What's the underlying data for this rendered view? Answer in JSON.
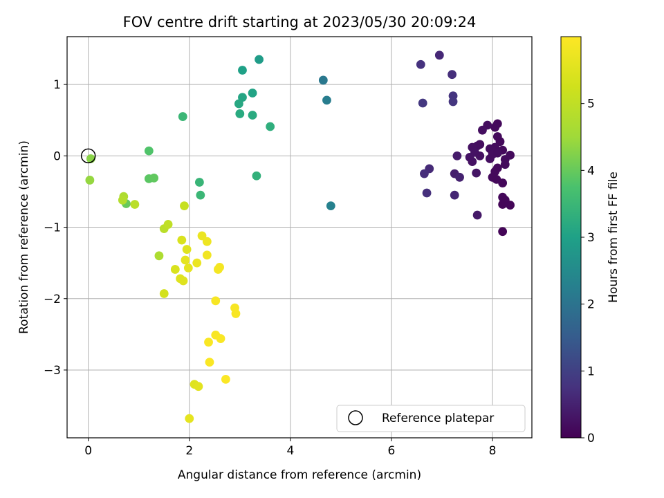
{
  "chart_data": {
    "type": "scatter",
    "title": "FOV centre drift starting at 2023/05/30 20:09:24",
    "xlabel": "Angular distance from reference (arcmin)",
    "ylabel": "Rotation from reference (arcmin)",
    "xlim": [
      -0.42,
      8.78
    ],
    "ylim": [
      -3.95,
      1.67
    ],
    "xticks": [
      0,
      2,
      4,
      6,
      8
    ],
    "yticks": [
      1,
      0,
      -1,
      -2,
      -3
    ],
    "grid": true,
    "colorbar": {
      "label": "Hours from first FF file",
      "min": 0,
      "max": 6.0,
      "ticks": [
        0,
        1,
        2,
        3,
        4,
        5
      ],
      "colormap": "viridis"
    },
    "reference_point": {
      "x": 0,
      "y": 0,
      "label": "Reference platepar"
    },
    "legend": {
      "position": "lower-right",
      "entries": [
        "Reference platepar"
      ]
    },
    "points": [
      {
        "x": 8.1,
        "y": 0.45,
        "h": 0.12
      },
      {
        "x": 8.05,
        "y": 0.4,
        "h": 0.14
      },
      {
        "x": 7.9,
        "y": 0.43,
        "h": 0.18
      },
      {
        "x": 7.8,
        "y": 0.36,
        "h": 0.22
      },
      {
        "x": 8.1,
        "y": 0.27,
        "h": 0.15
      },
      {
        "x": 8.15,
        "y": 0.2,
        "h": 0.13
      },
      {
        "x": 8.2,
        "y": 0.08,
        "h": 0.12
      },
      {
        "x": 8.05,
        "y": 0.12,
        "h": 0.16
      },
      {
        "x": 7.95,
        "y": 0.1,
        "h": 0.18
      },
      {
        "x": 7.75,
        "y": 0.16,
        "h": 0.2
      },
      {
        "x": 7.7,
        "y": 0.14,
        "h": 0.22
      },
      {
        "x": 7.6,
        "y": 0.12,
        "h": 0.24
      },
      {
        "x": 7.65,
        "y": 0.05,
        "h": 0.26
      },
      {
        "x": 7.55,
        "y": -0.02,
        "h": 0.28
      },
      {
        "x": 7.6,
        "y": -0.08,
        "h": 0.26
      },
      {
        "x": 7.75,
        "y": 0.0,
        "h": 0.24
      },
      {
        "x": 7.95,
        "y": -0.04,
        "h": 0.22
      },
      {
        "x": 8.0,
        "y": 0.02,
        "h": 0.2
      },
      {
        "x": 8.1,
        "y": 0.04,
        "h": 0.18
      },
      {
        "x": 8.25,
        "y": -0.05,
        "h": 0.16
      },
      {
        "x": 8.35,
        "y": 0.01,
        "h": 0.15
      },
      {
        "x": 8.25,
        "y": -0.12,
        "h": 0.14
      },
      {
        "x": 8.1,
        "y": -0.17,
        "h": 0.13
      },
      {
        "x": 8.05,
        "y": -0.22,
        "h": 0.12
      },
      {
        "x": 8.0,
        "y": -0.3,
        "h": 0.12
      },
      {
        "x": 8.08,
        "y": -0.33,
        "h": 0.11
      },
      {
        "x": 8.2,
        "y": -0.38,
        "h": 0.1
      },
      {
        "x": 8.2,
        "y": -0.58,
        "h": 0.1
      },
      {
        "x": 8.25,
        "y": -0.62,
        "h": 0.09
      },
      {
        "x": 8.2,
        "y": -0.68,
        "h": 0.08
      },
      {
        "x": 8.35,
        "y": -0.69,
        "h": 0.08
      },
      {
        "x": 8.2,
        "y": -1.06,
        "h": 0.06
      },
      {
        "x": 7.68,
        "y": -0.24,
        "h": 0.3
      },
      {
        "x": 7.7,
        "y": -0.83,
        "h": 0.36
      },
      {
        "x": 7.3,
        "y": 0.0,
        "h": 0.4
      },
      {
        "x": 7.25,
        "y": -0.25,
        "h": 0.45
      },
      {
        "x": 7.35,
        "y": -0.3,
        "h": 0.5
      },
      {
        "x": 7.25,
        "y": -0.55,
        "h": 0.55
      },
      {
        "x": 6.75,
        "y": -0.18,
        "h": 0.62
      },
      {
        "x": 6.65,
        "y": -0.25,
        "h": 0.68
      },
      {
        "x": 6.7,
        "y": -0.52,
        "h": 0.72
      },
      {
        "x": 6.95,
        "y": 1.41,
        "h": 0.6
      },
      {
        "x": 6.58,
        "y": 1.28,
        "h": 0.75
      },
      {
        "x": 7.2,
        "y": 1.14,
        "h": 0.7
      },
      {
        "x": 7.22,
        "y": 0.84,
        "h": 0.78
      },
      {
        "x": 7.22,
        "y": 0.76,
        "h": 0.82
      },
      {
        "x": 6.62,
        "y": 0.74,
        "h": 0.86
      },
      {
        "x": 4.65,
        "y": 1.06,
        "h": 2.1
      },
      {
        "x": 4.72,
        "y": 0.78,
        "h": 2.2
      },
      {
        "x": 4.8,
        "y": -0.7,
        "h": 2.3
      },
      {
        "x": 3.38,
        "y": 1.35,
        "h": 2.9
      },
      {
        "x": 3.05,
        "y": 1.2,
        "h": 3.0
      },
      {
        "x": 3.05,
        "y": 0.82,
        "h": 3.1
      },
      {
        "x": 3.25,
        "y": 0.88,
        "h": 3.05
      },
      {
        "x": 2.98,
        "y": 0.73,
        "h": 3.15
      },
      {
        "x": 3.0,
        "y": 0.59,
        "h": 3.2
      },
      {
        "x": 3.25,
        "y": 0.57,
        "h": 3.2
      },
      {
        "x": 3.6,
        "y": 0.41,
        "h": 3.3
      },
      {
        "x": 3.33,
        "y": -0.28,
        "h": 3.35
      },
      {
        "x": 1.87,
        "y": 0.55,
        "h": 3.5
      },
      {
        "x": 2.2,
        "y": -0.37,
        "h": 3.45
      },
      {
        "x": 2.22,
        "y": -0.55,
        "h": 3.5
      },
      {
        "x": 1.2,
        "y": 0.07,
        "h": 3.8
      },
      {
        "x": 1.2,
        "y": -0.32,
        "h": 3.9
      },
      {
        "x": 1.3,
        "y": -0.31,
        "h": 3.95
      },
      {
        "x": 0.75,
        "y": -0.67,
        "h": 4.0
      },
      {
        "x": 0.05,
        "y": -0.04,
        "h": 4.3
      },
      {
        "x": 0.03,
        "y": -0.34,
        "h": 4.4
      },
      {
        "x": 0.7,
        "y": -0.57,
        "h": 4.7
      },
      {
        "x": 0.68,
        "y": -0.62,
        "h": 4.8
      },
      {
        "x": 0.92,
        "y": -0.68,
        "h": 4.9
      },
      {
        "x": 1.4,
        "y": -1.4,
        "h": 4.7
      },
      {
        "x": 1.5,
        "y": -1.02,
        "h": 4.9
      },
      {
        "x": 1.58,
        "y": -0.96,
        "h": 5.0
      },
      {
        "x": 1.9,
        "y": -0.7,
        "h": 5.1
      },
      {
        "x": 1.5,
        "y": -1.93,
        "h": 5.3
      },
      {
        "x": 1.72,
        "y": -1.59,
        "h": 5.4
      },
      {
        "x": 1.82,
        "y": -1.72,
        "h": 5.5
      },
      {
        "x": 1.88,
        "y": -1.75,
        "h": 5.5
      },
      {
        "x": 1.85,
        "y": -1.18,
        "h": 5.4
      },
      {
        "x": 1.95,
        "y": -1.31,
        "h": 5.5
      },
      {
        "x": 1.92,
        "y": -1.46,
        "h": 5.6
      },
      {
        "x": 1.98,
        "y": -1.57,
        "h": 5.6
      },
      {
        "x": 2.15,
        "y": -1.5,
        "h": 5.7
      },
      {
        "x": 2.25,
        "y": -1.12,
        "h": 5.7
      },
      {
        "x": 2.35,
        "y": -1.2,
        "h": 5.75
      },
      {
        "x": 2.35,
        "y": -1.39,
        "h": 5.8
      },
      {
        "x": 2.6,
        "y": -1.56,
        "h": 5.85
      },
      {
        "x": 2.57,
        "y": -1.59,
        "h": 5.85
      },
      {
        "x": 2.52,
        "y": -2.03,
        "h": 5.9
      },
      {
        "x": 2.9,
        "y": -2.13,
        "h": 5.9
      },
      {
        "x": 2.92,
        "y": -2.21,
        "h": 5.92
      },
      {
        "x": 2.52,
        "y": -2.51,
        "h": 5.92
      },
      {
        "x": 2.62,
        "y": -2.56,
        "h": 5.94
      },
      {
        "x": 2.38,
        "y": -2.61,
        "h": 5.94
      },
      {
        "x": 2.4,
        "y": -2.89,
        "h": 5.95
      },
      {
        "x": 2.72,
        "y": -3.13,
        "h": 5.96
      },
      {
        "x": 2.1,
        "y": -3.2,
        "h": 5.5
      },
      {
        "x": 2.18,
        "y": -3.23,
        "h": 5.55
      },
      {
        "x": 2.0,
        "y": -3.68,
        "h": 5.6
      }
    ]
  }
}
